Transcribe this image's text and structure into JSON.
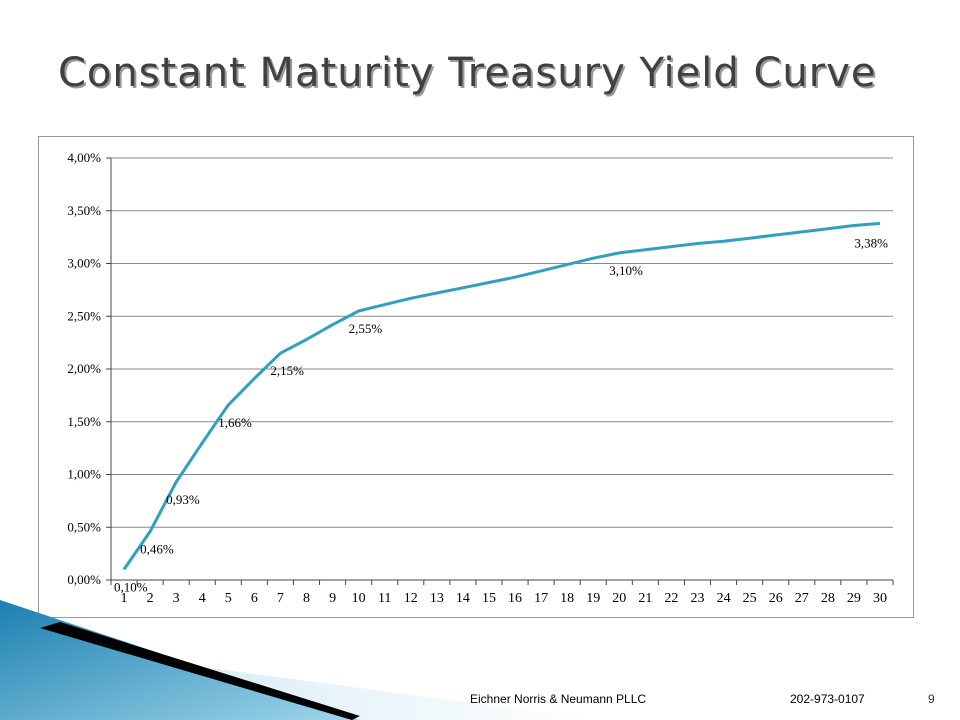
{
  "slide": {
    "title": "Constant Maturity Treasury Yield Curve",
    "footer_company": "Eichner Norris & Neumann PLLC",
    "footer_phone": "202-973-0107",
    "page_number": "9"
  },
  "colors": {
    "series_line": "#31a0be",
    "gridline": "#8a8a8a",
    "title_text": "#404040",
    "deco_blue_dark": "#1b7fb0",
    "deco_blue_light": "#9fd6ea"
  },
  "chart_data": {
    "type": "line",
    "title": "",
    "xlabel": "",
    "ylabel": "",
    "ylim": [
      0,
      4.0
    ],
    "y_ticks": [
      "0,00%",
      "0,50%",
      "1,00%",
      "1,50%",
      "2,00%",
      "2,50%",
      "3,00%",
      "3,50%",
      "4,00%"
    ],
    "x": [
      1,
      2,
      3,
      4,
      5,
      6,
      7,
      8,
      9,
      10,
      11,
      12,
      13,
      14,
      15,
      16,
      17,
      18,
      19,
      20,
      21,
      22,
      23,
      24,
      25,
      26,
      27,
      28,
      29,
      30
    ],
    "x_tick_labels": [
      "1",
      "2",
      "3",
      "4",
      "5",
      "6",
      "7",
      "8",
      "9",
      "10",
      "11",
      "12",
      "13",
      "14",
      "15",
      "16",
      "17",
      "18",
      "19",
      "20",
      "21",
      "22",
      "23",
      "24",
      "25",
      "26",
      "27",
      "28",
      "29",
      "30"
    ],
    "series": [
      {
        "values": [
          0.1,
          0.46,
          0.93,
          1.3,
          1.66,
          1.91,
          2.15,
          2.28,
          2.42,
          2.55,
          2.61,
          2.67,
          2.72,
          2.77,
          2.82,
          2.87,
          2.93,
          2.99,
          3.05,
          3.1,
          3.13,
          3.16,
          3.19,
          3.21,
          3.24,
          3.27,
          3.3,
          3.33,
          3.36,
          3.38
        ]
      }
    ],
    "data_labels": [
      {
        "x": 1,
        "text": "0,10%"
      },
      {
        "x": 2,
        "text": "0,46%"
      },
      {
        "x": 3,
        "text": "0,93%"
      },
      {
        "x": 5,
        "text": "1,66%"
      },
      {
        "x": 7,
        "text": "2,15%"
      },
      {
        "x": 10,
        "text": "2,55%"
      },
      {
        "x": 20,
        "text": "3,10%"
      },
      {
        "x": 30,
        "text": "3,38%"
      }
    ],
    "grid": true,
    "legend": "none"
  }
}
